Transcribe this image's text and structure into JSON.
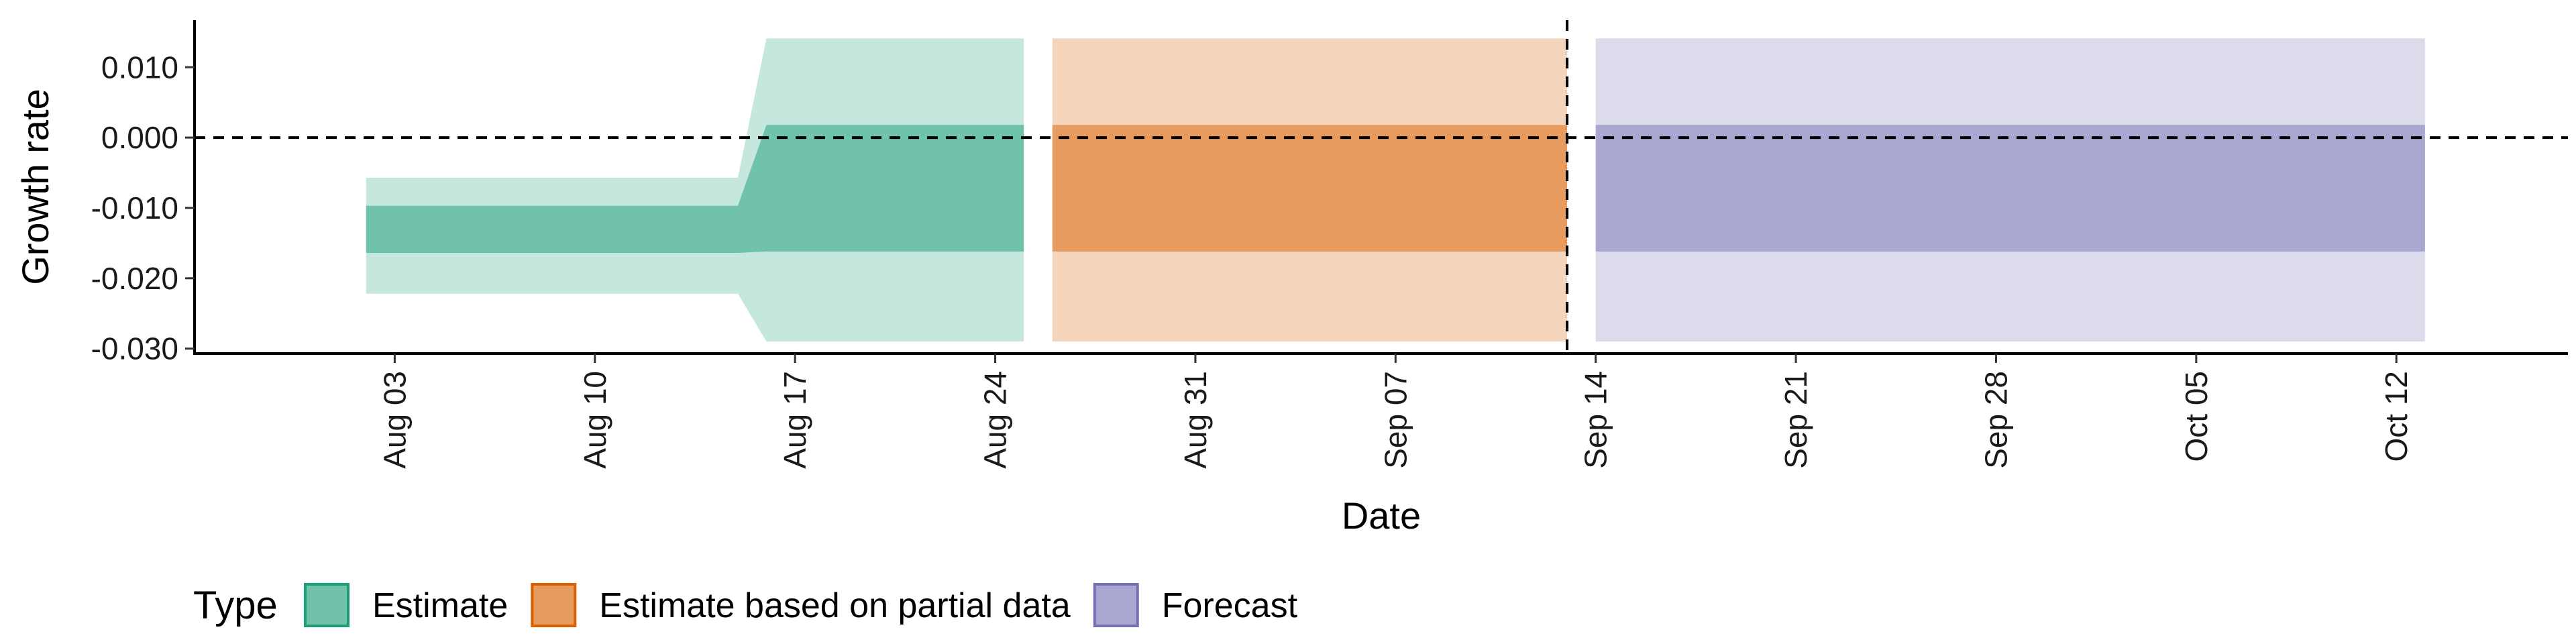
{
  "chart_data": {
    "type": "area",
    "title": "",
    "xlabel": "Date",
    "ylabel": "Growth rate",
    "xlim": [
      "2021-07-27",
      "2021-10-18"
    ],
    "ylim": [
      -0.0307,
      0.0167
    ],
    "y_ticks": [
      0.01,
      0.0,
      -0.01,
      -0.02,
      -0.03
    ],
    "y_tick_labels": [
      "0.010",
      "0.000",
      "-0.010",
      "-0.020",
      "-0.030"
    ],
    "x_ticks": [
      "2021-08-03",
      "2021-08-10",
      "2021-08-17",
      "2021-08-24",
      "2021-08-31",
      "2021-09-07",
      "2021-09-14",
      "2021-09-21",
      "2021-09-28",
      "2021-10-05",
      "2021-10-12"
    ],
    "x_tick_labels": [
      "Aug 03",
      "Aug 10",
      "Aug 17",
      "Aug 24",
      "Aug 31",
      "Sep 07",
      "Sep 14",
      "Sep 21",
      "Sep 28",
      "Oct 05",
      "Oct 12"
    ],
    "reference_lines": {
      "y": 0.0,
      "x": "2021-09-13"
    },
    "grid": false,
    "legend": {
      "title": "Type",
      "position": "bottom-left"
    },
    "series": [
      {
        "name": "Estimate",
        "color": "#1b9e77",
        "fill": "#70c2aa",
        "fill_light": "#c5e7de",
        "points": [
          {
            "date": "2021-08-02",
            "lower90": -0.0222,
            "lower50": -0.0164,
            "upper50": -0.0097,
            "upper90": -0.0057
          },
          {
            "date": "2021-08-15",
            "lower90": -0.0222,
            "lower50": -0.0164,
            "upper50": -0.0097,
            "upper90": -0.0057
          },
          {
            "date": "2021-08-16",
            "lower90": -0.029,
            "lower50": -0.0162,
            "upper50": 0.0018,
            "upper90": 0.0141
          },
          {
            "date": "2021-08-25",
            "lower90": -0.029,
            "lower50": -0.0162,
            "upper50": 0.0018,
            "upper90": 0.0141
          }
        ]
      },
      {
        "name": "Estimate based on partial data",
        "color": "#d95f02",
        "fill": "#e79b5f",
        "fill_light": "#f5d6bd",
        "points": [
          {
            "date": "2021-08-26",
            "lower90": -0.029,
            "lower50": -0.0162,
            "upper50": 0.0018,
            "upper90": 0.0141
          },
          {
            "date": "2021-09-13",
            "lower90": -0.029,
            "lower50": -0.0162,
            "upper50": 0.0018,
            "upper90": 0.0141
          }
        ]
      },
      {
        "name": "Forecast",
        "color": "#7570b3",
        "fill": "#a9a6d0",
        "fill_light": "#dcdbeb",
        "points": [
          {
            "date": "2021-09-14",
            "lower90": -0.029,
            "lower50": -0.0162,
            "upper50": 0.0018,
            "upper90": 0.0141
          },
          {
            "date": "2021-10-13",
            "lower90": -0.029,
            "lower50": -0.0162,
            "upper50": 0.0018,
            "upper90": 0.0141
          }
        ]
      }
    ]
  }
}
